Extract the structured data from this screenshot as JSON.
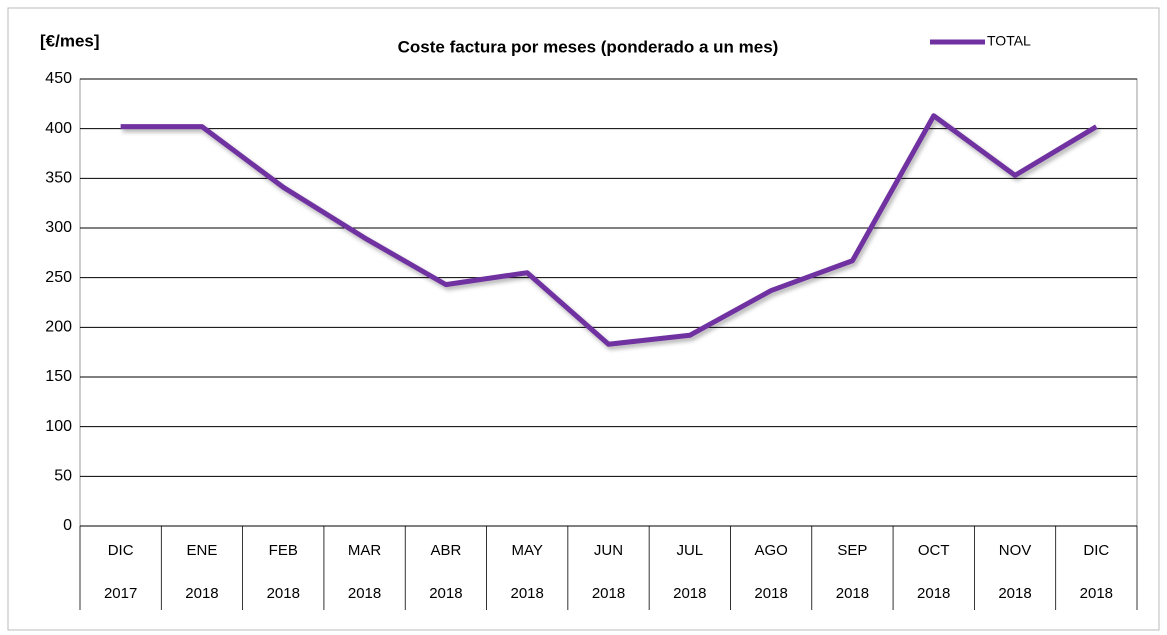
{
  "chart_data": {
    "type": "line",
    "title": "Coste factura por meses (ponderado a un mes)",
    "y_label": "[€/mes]",
    "categories": [
      [
        "DIC",
        "2017"
      ],
      [
        "ENE",
        "2018"
      ],
      [
        "FEB",
        "2018"
      ],
      [
        "MAR",
        "2018"
      ],
      [
        "ABR",
        "2018"
      ],
      [
        "MAY",
        "2018"
      ],
      [
        "JUN",
        "2018"
      ],
      [
        "JUL",
        "2018"
      ],
      [
        "AGO",
        "2018"
      ],
      [
        "SEP",
        "2018"
      ],
      [
        "OCT",
        "2018"
      ],
      [
        "NOV",
        "2018"
      ],
      [
        "DIC",
        "2018"
      ]
    ],
    "series": [
      {
        "name": "TOTAL",
        "color": "#7030a0",
        "values": [
          402,
          402,
          341,
          290,
          243,
          255,
          183,
          192,
          237,
          267,
          413,
          353,
          402
        ]
      }
    ],
    "ylim": [
      0,
      450
    ],
    "yticks": [
      0,
      50,
      100,
      150,
      200,
      250,
      300,
      350,
      400,
      450
    ],
    "grid": true,
    "legend": "top-right"
  }
}
